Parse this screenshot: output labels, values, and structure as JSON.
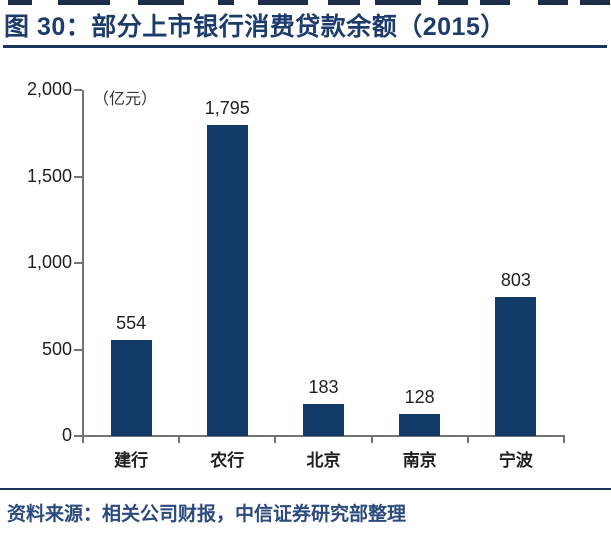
{
  "figure": {
    "title": "图 30：部分上市银行消费贷款余额（2015）",
    "source": "资料来源：相关公司财报，中信证券研究部整理"
  },
  "chart_data": {
    "type": "bar",
    "figure_number": "图 30",
    "title": "部分上市银行消费贷款余额（2015）",
    "unit_label": "（亿元）",
    "categories": [
      "建行",
      "农行",
      "北京",
      "南京",
      "宁波"
    ],
    "values": [
      554,
      1795,
      183,
      128,
      803
    ],
    "value_labels": [
      "554",
      "1,795",
      "183",
      "128",
      "803"
    ],
    "ylim": [
      0,
      2000
    ],
    "yticks": [
      0,
      500,
      1000,
      1500,
      2000
    ],
    "ytick_labels": [
      "0",
      "500",
      "1,000",
      "1,500",
      "2,000"
    ],
    "xlabel": "",
    "ylabel": "（亿元）",
    "legend": "none",
    "grid": false,
    "bar_color": "#123a66"
  },
  "colors": {
    "title_text": "#1c3c6e",
    "title_underline": "#17375e",
    "bar": "#123a66",
    "axis_line": "#737373",
    "tick_label_text": "#1f1f1f",
    "footer_rule": "#17375e",
    "source_text": "#2b4a7d"
  }
}
